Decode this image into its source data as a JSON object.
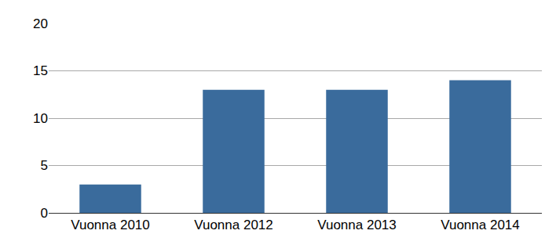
{
  "chart_data": {
    "type": "bar",
    "categories": [
      "Vuonna 2010",
      "Vuonna 2012",
      "Vuonna 2013",
      "Vuonna 2014"
    ],
    "values": [
      3,
      13,
      13,
      14
    ],
    "color": "#3a6b9c",
    "ylim": [
      0,
      20
    ],
    "yticks": [
      0,
      5,
      10,
      15,
      20
    ],
    "grid": true
  }
}
